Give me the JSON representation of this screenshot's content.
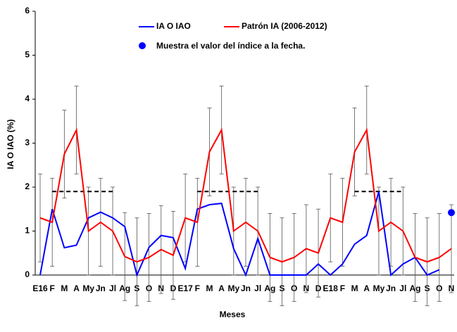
{
  "chart_data": {
    "type": "line",
    "xlabel": "Meses",
    "ylabel": "IA O IAO (%)",
    "categories": [
      "E16",
      "F",
      "M",
      "A",
      "My",
      "Jn",
      "Jl",
      "Ag",
      "S",
      "O",
      "N",
      "D",
      "E17",
      "F",
      "M",
      "A",
      "My",
      "Jn",
      "Jl",
      "Ag",
      "S",
      "O",
      "N",
      "D",
      "E18",
      "F",
      "M",
      "A",
      "My",
      "Jn",
      "Jl",
      "Ag",
      "S",
      "O",
      "N"
    ],
    "series": [
      {
        "name": "IA O IAO",
        "color": "#0000ff",
        "values": [
          0,
          1.5,
          0.62,
          0.68,
          1.3,
          1.43,
          1.3,
          1.1,
          0,
          0.63,
          0.9,
          0.85,
          0.15,
          1.5,
          1.6,
          1.63,
          0.6,
          0,
          0.83,
          0,
          0,
          0,
          0,
          0.25,
          0,
          0.25,
          0.7,
          0.9,
          1.9,
          0,
          0.25,
          0.4,
          0,
          0.12,
          null
        ]
      },
      {
        "name": "Patrón IA (2006-2012)",
        "color": "#ff0000",
        "values": [
          1.3,
          1.2,
          2.75,
          3.3,
          1.0,
          1.2,
          1.0,
          0.42,
          0.3,
          0.4,
          0.58,
          0.45,
          1.3,
          1.2,
          2.8,
          3.3,
          1.0,
          1.2,
          1.0,
          0.4,
          0.3,
          0.4,
          0.6,
          0.5,
          1.3,
          1.2,
          2.8,
          3.3,
          1.0,
          1.2,
          1.0,
          0.4,
          0.3,
          0.4,
          0.6
        ],
        "errors": [
          1,
          1,
          1,
          1,
          1,
          1,
          1,
          1,
          1,
          1,
          1,
          1,
          1,
          1,
          1,
          1,
          1,
          1,
          1,
          1,
          1,
          1,
          1,
          1,
          1,
          1,
          1,
          1,
          1,
          1,
          1,
          1,
          1,
          1,
          1
        ]
      }
    ],
    "reference_lines": [
      {
        "value": 1.9,
        "from": 1,
        "to": 6
      },
      {
        "value": 1.9,
        "from": 13,
        "to": 18
      },
      {
        "value": 1.9,
        "from": 26,
        "to": 30
      }
    ],
    "current_point": {
      "index": 34,
      "value": 1.42,
      "color": "#0000ff",
      "label": "Muestra el valor del índice a la fecha."
    },
    "ylim": [
      0,
      6
    ],
    "yticks": [
      0,
      1,
      2,
      3,
      4,
      5,
      6
    ],
    "grid": false
  }
}
